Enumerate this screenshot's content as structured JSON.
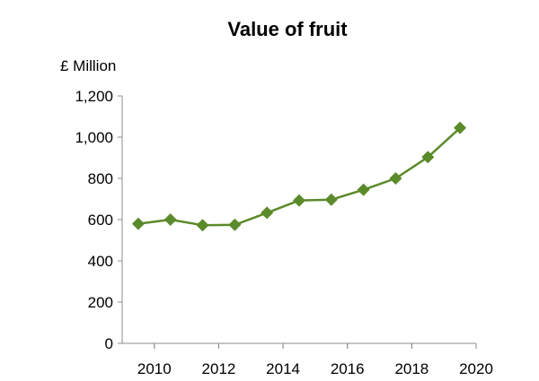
{
  "chart_data": {
    "type": "line",
    "title": "Value of fruit",
    "ylabel": "£ Million",
    "xlabel": "",
    "x": [
      2009.5,
      2010.5,
      2011.5,
      2012.5,
      2013.5,
      2014.5,
      2015.5,
      2016.5,
      2017.5,
      2018.5,
      2019.5
    ],
    "series": [
      {
        "values": [
          580,
          600,
          573,
          575,
          633,
          693,
          697,
          745,
          800,
          903,
          1045
        ]
      }
    ],
    "ylim": [
      0,
      1200
    ],
    "yticks": [
      0,
      200,
      400,
      600,
      800,
      1000,
      1200
    ],
    "ytick_labels": [
      "0",
      "200",
      "400",
      "600",
      "800",
      "1,000",
      "1,200"
    ],
    "xlim": [
      2009,
      2020
    ],
    "xticks": [
      2010,
      2012,
      2014,
      2016,
      2018,
      2020
    ],
    "xtick_labels": [
      "2010",
      "2012",
      "2014",
      "2016",
      "2018",
      "2020"
    ],
    "line_color": "#5b8a2a",
    "marker": "diamond",
    "grid": false,
    "legend": "none"
  }
}
